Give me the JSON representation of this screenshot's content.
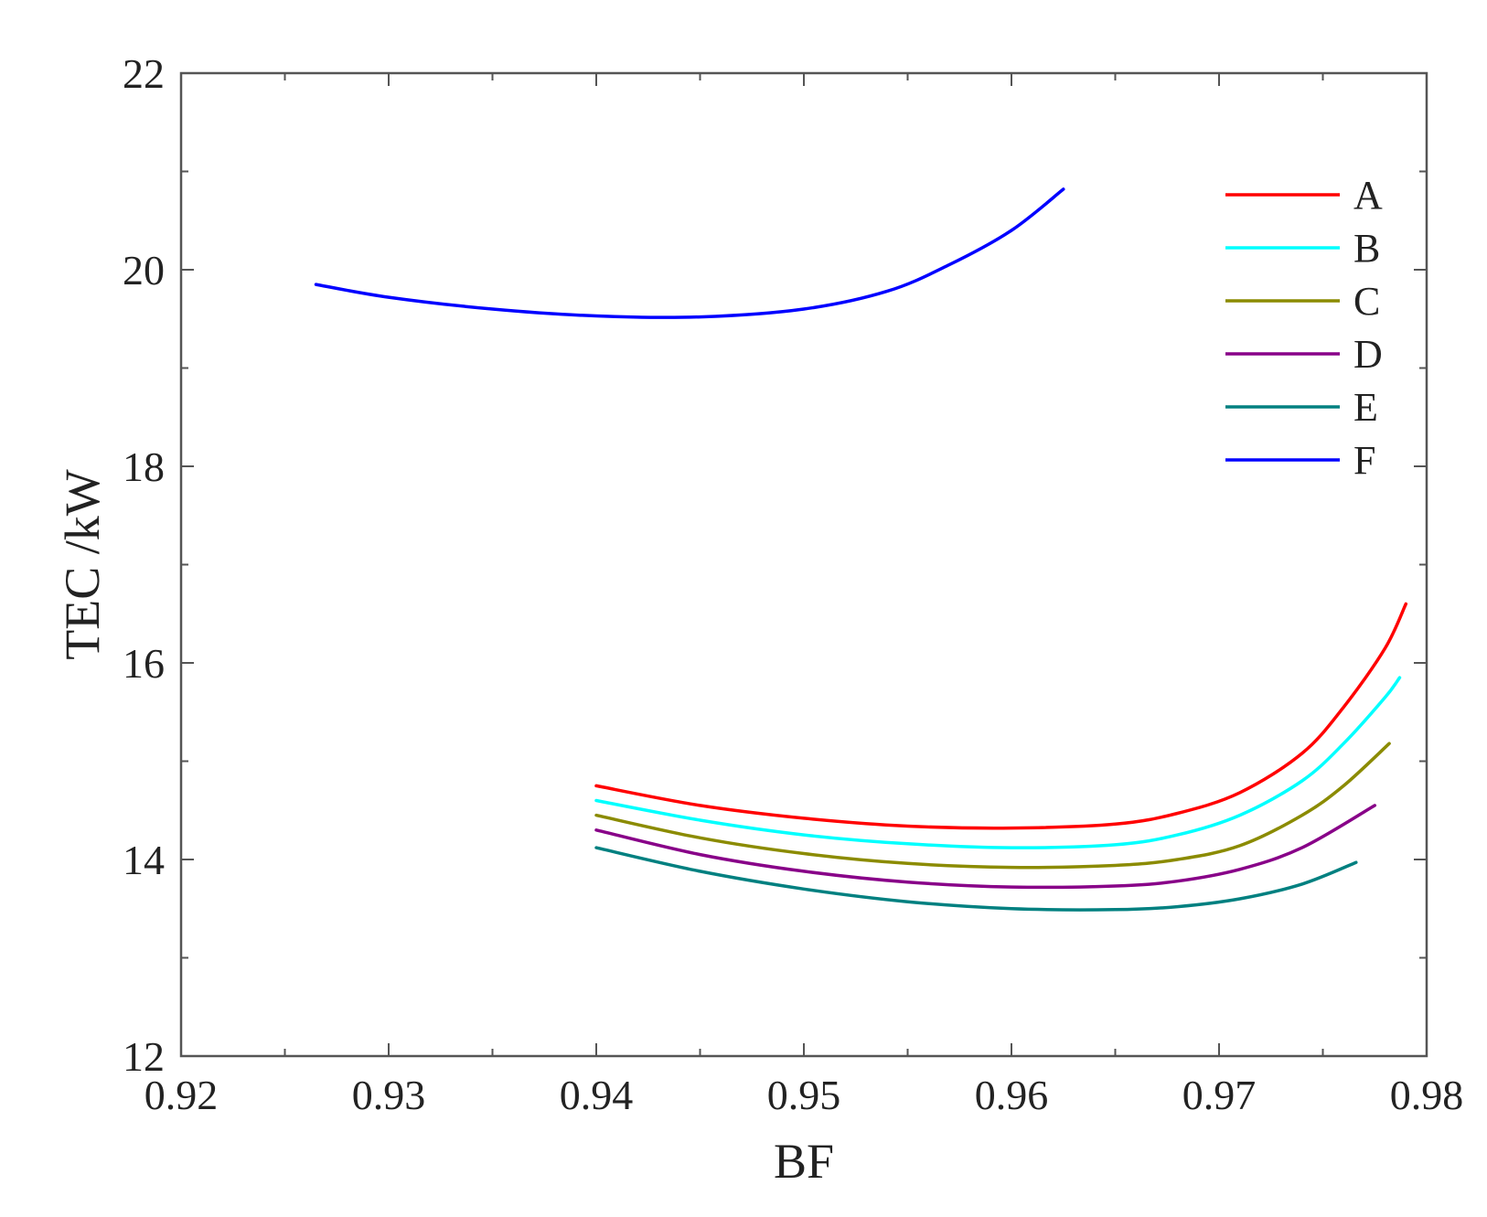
{
  "chart_data": {
    "type": "line",
    "title": "",
    "xlabel": "BF",
    "ylabel": "TEC /kW",
    "xlim": [
      0.92,
      0.98
    ],
    "ylim": [
      12,
      22
    ],
    "xticks": [
      0.92,
      0.93,
      0.94,
      0.95,
      0.96,
      0.97,
      0.98
    ],
    "yticks": [
      12,
      14,
      16,
      18,
      20,
      22
    ],
    "xtick_labels": [
      "0.92",
      "0.93",
      "0.94",
      "0.95",
      "0.96",
      "0.97",
      "0.98"
    ],
    "ytick_labels": [
      "12",
      "14",
      "16",
      "18",
      "20",
      "22"
    ],
    "legend_position": "top-right",
    "grid": false,
    "series": [
      {
        "name": "A",
        "color": "#ff0000",
        "x": [
          0.94,
          0.945,
          0.95,
          0.955,
          0.96,
          0.965,
          0.968,
          0.971,
          0.974,
          0.976,
          0.978,
          0.979
        ],
        "y": [
          14.75,
          14.55,
          14.42,
          14.34,
          14.32,
          14.36,
          14.47,
          14.68,
          15.08,
          15.55,
          16.15,
          16.6
        ]
      },
      {
        "name": "B",
        "color": "#00ffff",
        "x": [
          0.94,
          0.945,
          0.95,
          0.955,
          0.96,
          0.965,
          0.968,
          0.971,
          0.974,
          0.976,
          0.978,
          0.9787
        ],
        "y": [
          14.6,
          14.4,
          14.25,
          14.16,
          14.12,
          14.15,
          14.25,
          14.45,
          14.8,
          15.18,
          15.65,
          15.85
        ]
      },
      {
        "name": "C",
        "color": "#8b8b00",
        "x": [
          0.94,
          0.945,
          0.95,
          0.955,
          0.96,
          0.965,
          0.968,
          0.971,
          0.974,
          0.976,
          0.9782
        ],
        "y": [
          14.45,
          14.22,
          14.06,
          13.96,
          13.92,
          13.94,
          14.0,
          14.14,
          14.45,
          14.75,
          15.18
        ]
      },
      {
        "name": "D",
        "color": "#880088",
        "x": [
          0.94,
          0.945,
          0.95,
          0.955,
          0.96,
          0.965,
          0.968,
          0.971,
          0.974,
          0.9775
        ],
        "y": [
          14.3,
          14.05,
          13.88,
          13.77,
          13.72,
          13.73,
          13.78,
          13.9,
          14.12,
          14.55
        ]
      },
      {
        "name": "E",
        "color": "#008080",
        "x": [
          0.94,
          0.945,
          0.95,
          0.955,
          0.96,
          0.965,
          0.968,
          0.971,
          0.974,
          0.9766
        ],
        "y": [
          14.12,
          13.88,
          13.7,
          13.57,
          13.5,
          13.49,
          13.52,
          13.6,
          13.75,
          13.97
        ]
      },
      {
        "name": "F",
        "color": "#0000ff",
        "x": [
          0.9265,
          0.93,
          0.935,
          0.94,
          0.945,
          0.95,
          0.954,
          0.957,
          0.96,
          0.9625
        ],
        "y": [
          19.85,
          19.72,
          19.6,
          19.53,
          19.52,
          19.6,
          19.78,
          20.05,
          20.4,
          20.82
        ]
      }
    ]
  }
}
